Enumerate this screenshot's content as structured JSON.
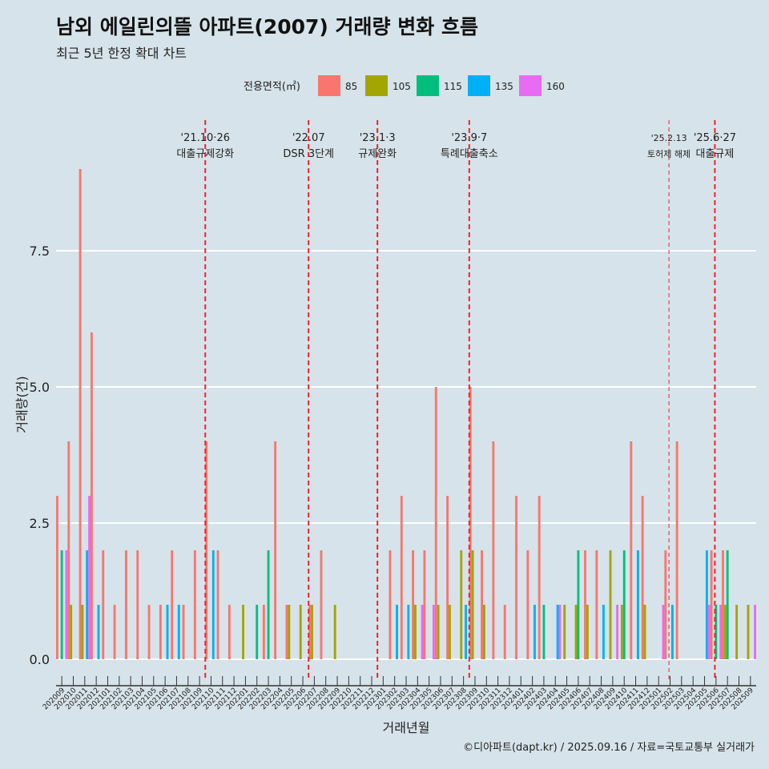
{
  "title": "남외 에일린의뜰 아파트(2007) 거래량 변화 흐름",
  "subtitle": "최근 5년 한정 확대 차트",
  "caption": "©디아파트(dapt.kr) / 2025.09.16 / 자료=국토교통부 실거래가",
  "colors": {
    "background": "#d6e3ea",
    "grid": "#ffffff",
    "event_line": "#e8262b",
    "series": {
      "85": "#f8766d",
      "105": "#a3a500",
      "115": "#00bf7d",
      "135": "#00b0f6",
      "160": "#e76bf3"
    }
  },
  "chart_data": {
    "type": "bar",
    "title": "남외 에일린의뜰 아파트(2007) 거래량 변화 흐름",
    "subtitle": "최근 5년 한정 확대 차트",
    "xlabel": "거래년월",
    "ylabel": "거래량(건)",
    "ylim": [
      0,
      9.0
    ],
    "yticks": [
      0.0,
      2.5,
      5.0,
      7.5
    ],
    "ytick_labels": [
      "0.0",
      "2.5",
      "5.0",
      "7.5"
    ],
    "grid": true,
    "legend_title": "전용면적(㎡)",
    "legend_position": "top",
    "categories": [
      "202009",
      "202010",
      "202011",
      "202012",
      "202101",
      "202102",
      "202103",
      "202104",
      "202105",
      "202106",
      "202107",
      "202108",
      "202109",
      "202110",
      "202111",
      "202112",
      "202201",
      "202202",
      "202203",
      "202204",
      "202205",
      "202206",
      "202207",
      "202208",
      "202209",
      "202210",
      "202211",
      "202212",
      "202301",
      "202302",
      "202303",
      "202304",
      "202305",
      "202306",
      "202307",
      "202308",
      "202309",
      "202310",
      "202311",
      "202312",
      "202401",
      "202402",
      "202403",
      "202404",
      "202405",
      "202406",
      "202407",
      "202408",
      "202409",
      "202410",
      "202411",
      "202412",
      "202501",
      "202502",
      "202503",
      "202504",
      "202505",
      "202506",
      "202507",
      "202508",
      "202509"
    ],
    "series": [
      {
        "name": "85",
        "values": [
          3,
          4,
          9,
          6,
          2,
          1,
          2,
          2,
          1,
          1,
          2,
          1,
          2,
          4,
          2,
          1,
          0,
          0,
          1,
          4,
          1,
          0,
          1,
          2,
          0,
          0,
          0,
          0,
          0,
          2,
          3,
          2,
          2,
          5,
          3,
          0,
          5,
          2,
          4,
          1,
          3,
          2,
          3,
          0,
          0,
          0,
          2,
          2,
          0,
          0,
          4,
          3,
          0,
          2,
          4,
          0,
          0,
          2,
          2,
          0,
          0
        ]
      },
      {
        "name": "105",
        "values": [
          0,
          1,
          1,
          0,
          0,
          0,
          0,
          0,
          0,
          0,
          0,
          0,
          0,
          0,
          0,
          0,
          1,
          0,
          0,
          0,
          1,
          1,
          1,
          0,
          1,
          0,
          0,
          0,
          0,
          0,
          0,
          1,
          0,
          1,
          1,
          2,
          2,
          1,
          0,
          0,
          0,
          0,
          0,
          0,
          1,
          1,
          1,
          0,
          2,
          1,
          0,
          1,
          0,
          0,
          0,
          0,
          0,
          0,
          1,
          1,
          1
        ]
      },
      {
        "name": "115",
        "values": [
          2,
          0,
          0,
          0,
          0,
          0,
          0,
          0,
          0,
          0,
          0,
          0,
          0,
          0,
          0,
          0,
          0,
          1,
          2,
          0,
          0,
          0,
          0,
          0,
          0,
          0,
          0,
          0,
          0,
          0,
          0,
          0,
          0,
          0,
          0,
          0,
          0,
          0,
          0,
          0,
          0,
          0,
          1,
          0,
          0,
          2,
          0,
          0,
          0,
          2,
          0,
          0,
          0,
          0,
          0,
          0,
          0,
          1,
          2,
          0,
          0
        ]
      },
      {
        "name": "135",
        "values": [
          0,
          0,
          2,
          1,
          0,
          0,
          0,
          0,
          0,
          1,
          1,
          0,
          0,
          2,
          0,
          0,
          0,
          0,
          0,
          0,
          0,
          0,
          0,
          0,
          0,
          0,
          0,
          0,
          0,
          1,
          1,
          0,
          0,
          0,
          0,
          1,
          0,
          0,
          0,
          0,
          0,
          1,
          0,
          1,
          0,
          0,
          0,
          1,
          0,
          0,
          2,
          0,
          0,
          1,
          0,
          0,
          2,
          0,
          0,
          0,
          0
        ]
      },
      {
        "name": "160",
        "values": [
          2,
          0,
          3,
          0,
          0,
          0,
          0,
          0,
          0,
          0,
          0,
          0,
          0,
          0,
          0,
          0,
          0,
          0,
          0,
          0,
          0,
          0,
          0,
          0,
          0,
          0,
          0,
          0,
          0,
          0,
          0,
          1,
          1,
          0,
          0,
          0,
          0,
          0,
          0,
          0,
          0,
          0,
          0,
          1,
          0,
          0,
          0,
          0,
          1,
          0,
          0,
          0,
          1,
          0,
          0,
          0,
          1,
          1,
          0,
          0,
          1
        ]
      }
    ],
    "events": [
      {
        "at": 13.0,
        "date": "'21.10·26",
        "label": "대출규제강화",
        "style": "dashed"
      },
      {
        "at": 22.0,
        "date": "'22.07",
        "label": "DSR 3단계",
        "style": "dashed"
      },
      {
        "at": 28.0,
        "date": "'23.1·3",
        "label": "규제완화",
        "style": "dashed"
      },
      {
        "at": 36.0,
        "date": "'23.9·7",
        "label": "특례대출축소",
        "style": "dashed"
      },
      {
        "at": 53.4,
        "date": "'25.2.13",
        "label": "토허제 해제",
        "style": "thin-dashed"
      },
      {
        "at": 57.4,
        "date": "'25.6·27",
        "label": "대출규제",
        "style": "dashed"
      }
    ]
  }
}
